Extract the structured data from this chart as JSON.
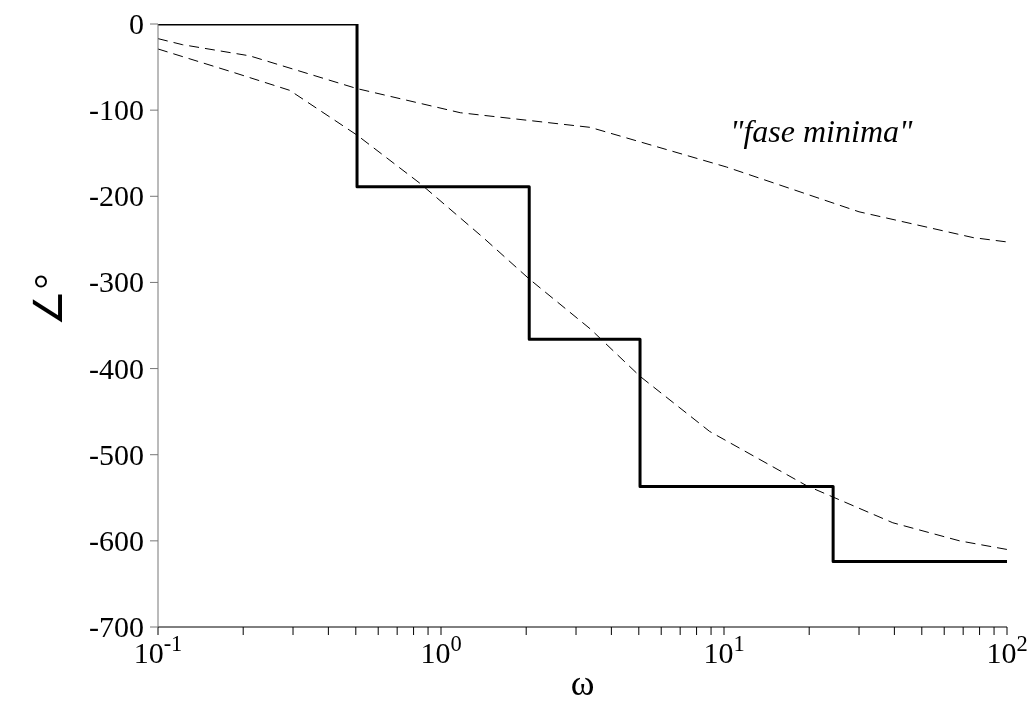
{
  "chart_data": {
    "type": "line",
    "xlabel": "ω",
    "ylabel": "∠°",
    "log": "x",
    "xlim": [
      0.1,
      100
    ],
    "ylim": [
      -700,
      0
    ],
    "xticks": [
      {
        "value": 0.1,
        "label": "10$^{-1}$"
      },
      {
        "value": 0.2,
        "label": null
      },
      {
        "value": 0.3,
        "label": null
      },
      {
        "value": 0.4,
        "label": null
      },
      {
        "value": 0.5,
        "label": null
      },
      {
        "value": 0.6,
        "label": null
      },
      {
        "value": 0.7,
        "label": null
      },
      {
        "value": 0.8,
        "label": null
      },
      {
        "value": 0.9,
        "label": null
      },
      {
        "value": 1,
        "label": "10$^{0}$"
      },
      {
        "value": 2,
        "label": null
      },
      {
        "value": 3,
        "label": null
      },
      {
        "value": 4,
        "label": null
      },
      {
        "value": 5,
        "label": null
      },
      {
        "value": 6,
        "label": null
      },
      {
        "value": 7,
        "label": null
      },
      {
        "value": 8,
        "label": null
      },
      {
        "value": 9,
        "label": null
      },
      {
        "value": 10,
        "label": "10$^{1}$"
      },
      {
        "value": 20,
        "label": null
      },
      {
        "value": 30,
        "label": null
      },
      {
        "value": 40,
        "label": null
      },
      {
        "value": 50,
        "label": null
      },
      {
        "value": 60,
        "label": null
      },
      {
        "value": 70,
        "label": null
      },
      {
        "value": 80,
        "label": null
      },
      {
        "value": 90,
        "label": null
      },
      {
        "value": 100,
        "label": "10$^{2}$"
      }
    ],
    "yticks": [
      0,
      -100,
      -200,
      -300,
      -400,
      -500,
      -600,
      -700
    ],
    "grid": false,
    "legend": false,
    "marker": "none",
    "series": [
      {
        "type": "step",
        "color": "#000000",
        "line_style": "solid",
        "x": [
          0.1,
          0.505,
          2.05,
          5.05,
          24.3,
          100
        ],
        "values": [
          0,
          -189,
          -366,
          -537,
          -624,
          -624
        ]
      },
      {
        "type": "line",
        "color": "#000000",
        "line_style": "dashed",
        "x": [
          0.1,
          0.122,
          0.211,
          0.505,
          1.17,
          3.37,
          10.2,
          30,
          76,
          100
        ],
        "values": [
          -17,
          -24,
          -37,
          -75,
          -103,
          -120,
          -166,
          -218,
          -248,
          -253
        ]
      },
      {
        "type": "line",
        "color": "#000000",
        "line_style": "dashed",
        "x": [
          0.1,
          0.184,
          0.292,
          0.505,
          0.843,
          1.41,
          2.05,
          3.37,
          5.05,
          8.9,
          19.6,
          39.5,
          68,
          100
        ],
        "values": [
          -29,
          -56,
          -77,
          -129,
          -185,
          -248,
          -296,
          -354,
          -409,
          -473,
          -536,
          -579,
          -600,
          -610
        ]
      }
    ],
    "annotations": [
      "\"fase minima\""
    ]
  }
}
